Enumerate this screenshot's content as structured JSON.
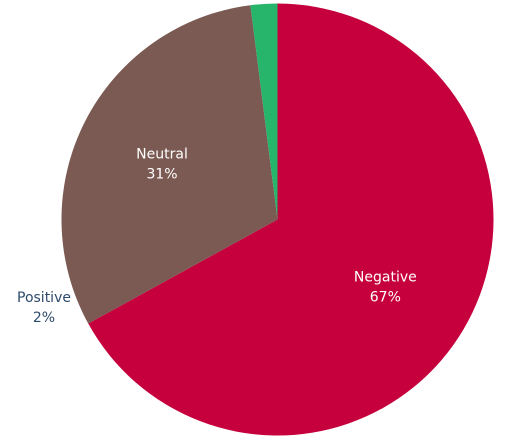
{
  "chart_data": {
    "type": "pie",
    "categories": [
      "Negative",
      "Neutral",
      "Positive"
    ],
    "values": [
      67,
      31,
      2
    ],
    "unit": "%",
    "labels": [
      "Negative",
      "Neutral",
      "Positive"
    ],
    "value_labels": [
      "67%",
      "31%",
      "2%"
    ],
    "colors": [
      "#c5003c",
      "#7a5a52",
      "#27b46b"
    ],
    "label_color_inside": "#ffffff",
    "label_color_outside": "#2e4a6b",
    "start": "12 o'clock",
    "direction": "clockwise"
  }
}
